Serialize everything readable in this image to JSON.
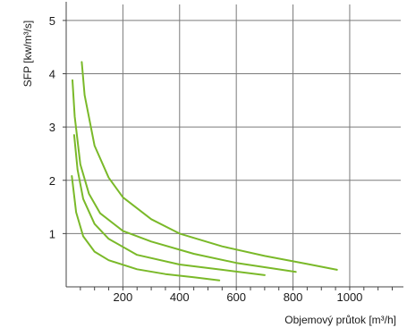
{
  "chart_data": {
    "type": "line",
    "title": "",
    "xlabel": "Objemový průtok [m³/h]",
    "ylabel": "SFP [kw/m³/s]",
    "xlim": [
      0,
      1180
    ],
    "ylim": [
      0,
      5.3
    ],
    "x_ticks": [
      200,
      400,
      600,
      800,
      1000
    ],
    "x_tick_labels": [
      "200",
      "400",
      "600",
      "800",
      "1000"
    ],
    "y_ticks": [
      1,
      2,
      3,
      4,
      5
    ],
    "y_tick_labels": [
      "1",
      "2",
      "3",
      "4",
      "5"
    ],
    "x_grid": [
      200,
      400,
      600,
      800,
      1000
    ],
    "y_grid": [
      1,
      2,
      3,
      4,
      5
    ],
    "x_minor_step": 50,
    "grid": true,
    "legend": "none",
    "line_color": "#7ab929",
    "series": [
      {
        "points": [
          [
            20,
            2.08
          ],
          [
            35,
            1.4
          ],
          [
            60,
            0.95
          ],
          [
            100,
            0.66
          ],
          [
            150,
            0.5
          ],
          [
            250,
            0.33
          ],
          [
            350,
            0.24
          ],
          [
            450,
            0.18
          ],
          [
            540,
            0.12
          ]
        ]
      },
      {
        "points": [
          [
            28,
            2.85
          ],
          [
            40,
            2.2
          ],
          [
            60,
            1.65
          ],
          [
            100,
            1.18
          ],
          [
            150,
            0.9
          ],
          [
            250,
            0.6
          ],
          [
            400,
            0.42
          ],
          [
            550,
            0.32
          ],
          [
            700,
            0.22
          ]
        ]
      },
      {
        "points": [
          [
            22,
            3.88
          ],
          [
            30,
            3.2
          ],
          [
            50,
            2.3
          ],
          [
            80,
            1.75
          ],
          [
            120,
            1.38
          ],
          [
            200,
            1.05
          ],
          [
            300,
            0.85
          ],
          [
            450,
            0.62
          ],
          [
            600,
            0.45
          ],
          [
            810,
            0.28
          ]
        ]
      },
      {
        "points": [
          [
            55,
            4.22
          ],
          [
            65,
            3.6
          ],
          [
            100,
            2.65
          ],
          [
            150,
            2.05
          ],
          [
            200,
            1.68
          ],
          [
            300,
            1.27
          ],
          [
            400,
            1.0
          ],
          [
            550,
            0.76
          ],
          [
            700,
            0.58
          ],
          [
            850,
            0.43
          ],
          [
            955,
            0.32
          ]
        ]
      }
    ]
  }
}
